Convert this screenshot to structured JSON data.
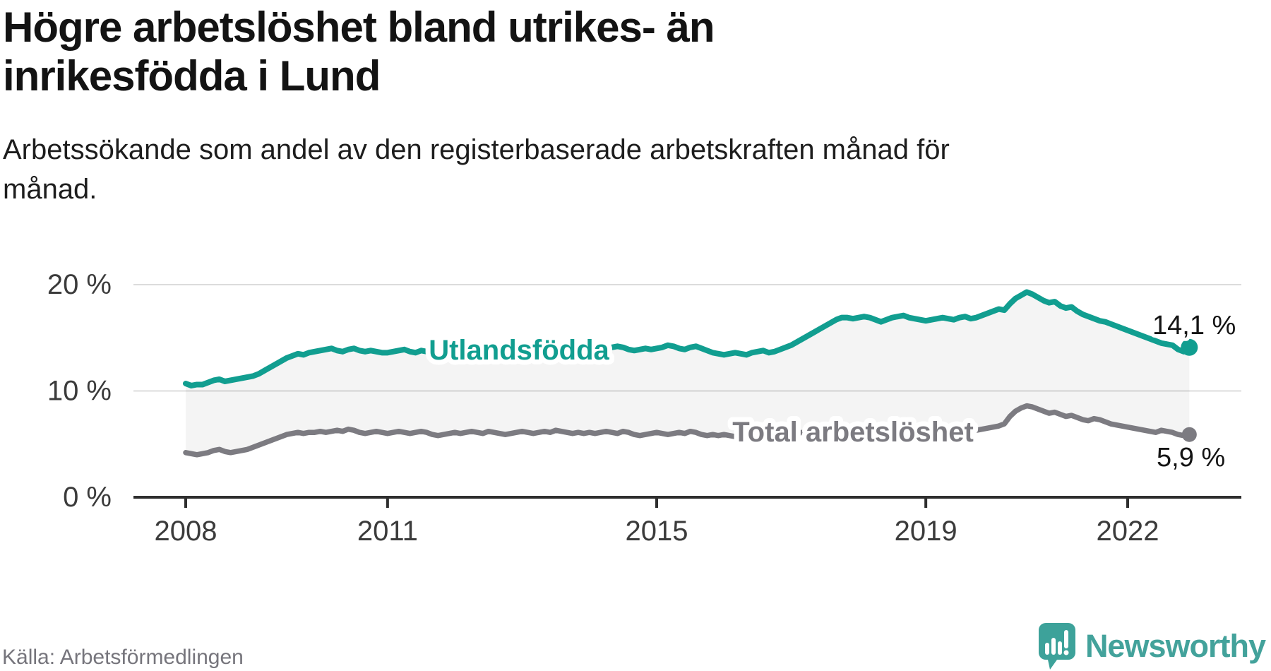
{
  "header": {
    "title": "Högre arbetslöshet bland utrikes- än\ninrikesfödda i Lund",
    "subtitle": "Arbetssökande som andel av den registerbaserade arbetskraften månad för\nmånad."
  },
  "source": {
    "label": "Källa: Arbetsförmedlingen"
  },
  "branding": {
    "wordmark": "Newsworthy",
    "logo_icon": "newsworthy-speech-bubble-bar-chart-icon",
    "brand_color": "#43a29b"
  },
  "colors": {
    "series_utlandsfodda": "#119e90",
    "series_total": "#7c7b81",
    "gridline": "#dcdcdc",
    "axis": "#2e2e2e",
    "axis_label": "#3b3b3b",
    "end_label_text": "#141414",
    "area_fill": "rgba(0,0,0,0.045)"
  },
  "chart_data": {
    "type": "line",
    "frequency": "monthly",
    "x_start_year": 2008,
    "x_end": "2022-12",
    "x_tick_years": [
      2008,
      2011,
      2015,
      2019,
      2022
    ],
    "x_tick_labels": [
      "2008",
      "2011",
      "2015",
      "2019",
      "2022"
    ],
    "y_ticks": [
      {
        "value": 0,
        "label": "0 %"
      },
      {
        "value": 10,
        "label": "10 %"
      },
      {
        "value": 20,
        "label": "20 %"
      }
    ],
    "ylim": [
      0,
      21
    ],
    "unit": "%",
    "grid": "horizontal",
    "area_between_series": true,
    "series": [
      {
        "name": "Utlandsfödda",
        "end_value": 14.1,
        "end_label": "14,1 %",
        "values": [
          10.7,
          10.5,
          10.6,
          10.6,
          10.8,
          11.0,
          11.1,
          10.9,
          11.0,
          11.1,
          11.2,
          11.3,
          11.4,
          11.6,
          11.9,
          12.2,
          12.5,
          12.8,
          13.1,
          13.3,
          13.5,
          13.4,
          13.6,
          13.7,
          13.8,
          13.9,
          14.0,
          13.8,
          13.7,
          13.9,
          14.0,
          13.8,
          13.7,
          13.8,
          13.7,
          13.6,
          13.6,
          13.7,
          13.8,
          13.9,
          13.7,
          13.6,
          13.8,
          13.7,
          13.5,
          13.4,
          13.5,
          13.5,
          13.4,
          13.3,
          13.5,
          13.6,
          13.5,
          13.4,
          13.6,
          13.7,
          13.5,
          13.4,
          13.3,
          13.4,
          13.5,
          13.4,
          13.6,
          13.7,
          13.6,
          13.5,
          13.7,
          13.8,
          13.6,
          13.5,
          13.6,
          13.7,
          13.8,
          13.7,
          13.9,
          14.0,
          14.1,
          14.2,
          14.1,
          13.9,
          13.8,
          13.9,
          14.0,
          13.9,
          14.0,
          14.1,
          14.3,
          14.2,
          14.0,
          13.9,
          14.1,
          14.2,
          14.0,
          13.8,
          13.6,
          13.5,
          13.4,
          13.5,
          13.6,
          13.5,
          13.4,
          13.6,
          13.7,
          13.8,
          13.6,
          13.7,
          13.9,
          14.1,
          14.3,
          14.6,
          14.9,
          15.2,
          15.5,
          15.8,
          16.1,
          16.4,
          16.7,
          16.9,
          16.9,
          16.8,
          16.9,
          17.0,
          16.9,
          16.7,
          16.5,
          16.7,
          16.9,
          17.0,
          17.1,
          16.9,
          16.8,
          16.7,
          16.6,
          16.7,
          16.8,
          16.9,
          16.8,
          16.7,
          16.9,
          17.0,
          16.8,
          16.9,
          17.1,
          17.3,
          17.5,
          17.7,
          17.6,
          18.2,
          18.7,
          19.0,
          19.3,
          19.1,
          18.8,
          18.5,
          18.3,
          18.4,
          18.0,
          17.8,
          17.9,
          17.5,
          17.2,
          17.0,
          16.8,
          16.6,
          16.5,
          16.3,
          16.1,
          15.9,
          15.7,
          15.5,
          15.3,
          15.1,
          14.9,
          14.7,
          14.5,
          14.4,
          14.3,
          13.9,
          13.7,
          14.1
        ]
      },
      {
        "name": "Total arbetslöshet",
        "end_value": 5.9,
        "end_label": "5,9 %",
        "values": [
          4.2,
          4.1,
          4.0,
          4.1,
          4.2,
          4.4,
          4.5,
          4.3,
          4.2,
          4.3,
          4.4,
          4.5,
          4.7,
          4.9,
          5.1,
          5.3,
          5.5,
          5.7,
          5.9,
          6.0,
          6.1,
          6.0,
          6.1,
          6.1,
          6.2,
          6.1,
          6.2,
          6.3,
          6.2,
          6.4,
          6.3,
          6.1,
          6.0,
          6.1,
          6.2,
          6.1,
          6.0,
          6.1,
          6.2,
          6.1,
          6.0,
          6.1,
          6.2,
          6.1,
          5.9,
          5.8,
          5.9,
          6.0,
          6.1,
          6.0,
          6.1,
          6.2,
          6.1,
          6.0,
          6.2,
          6.1,
          6.0,
          5.9,
          6.0,
          6.1,
          6.2,
          6.1,
          6.0,
          6.1,
          6.2,
          6.1,
          6.3,
          6.2,
          6.1,
          6.0,
          6.1,
          6.0,
          6.1,
          6.0,
          6.1,
          6.2,
          6.1,
          6.0,
          6.2,
          6.1,
          5.9,
          5.8,
          5.9,
          6.0,
          6.1,
          6.0,
          5.9,
          6.0,
          6.1,
          6.0,
          6.2,
          6.1,
          5.9,
          5.8,
          5.9,
          5.8,
          5.9,
          5.8,
          5.7,
          5.8,
          5.9,
          5.8,
          6.0,
          6.1,
          5.9,
          5.8,
          5.9,
          6.0,
          6.1,
          6.0,
          6.1,
          6.2,
          6.1,
          6.2,
          6.3,
          6.4,
          6.2,
          6.1,
          6.2,
          6.1,
          6.2,
          6.1,
          6.0,
          6.1,
          6.2,
          6.1,
          6.3,
          6.4,
          6.2,
          6.1,
          6.2,
          6.3,
          6.2,
          6.1,
          6.2,
          6.3,
          6.2,
          6.3,
          6.5,
          6.6,
          6.4,
          6.3,
          6.4,
          6.5,
          6.6,
          6.7,
          6.9,
          7.6,
          8.1,
          8.4,
          8.6,
          8.5,
          8.3,
          8.1,
          7.9,
          8.0,
          7.8,
          7.6,
          7.7,
          7.5,
          7.3,
          7.2,
          7.4,
          7.3,
          7.1,
          6.9,
          6.8,
          6.7,
          6.6,
          6.5,
          6.4,
          6.3,
          6.2,
          6.1,
          6.3,
          6.2,
          6.1,
          5.9,
          5.8,
          5.9
        ]
      }
    ]
  }
}
